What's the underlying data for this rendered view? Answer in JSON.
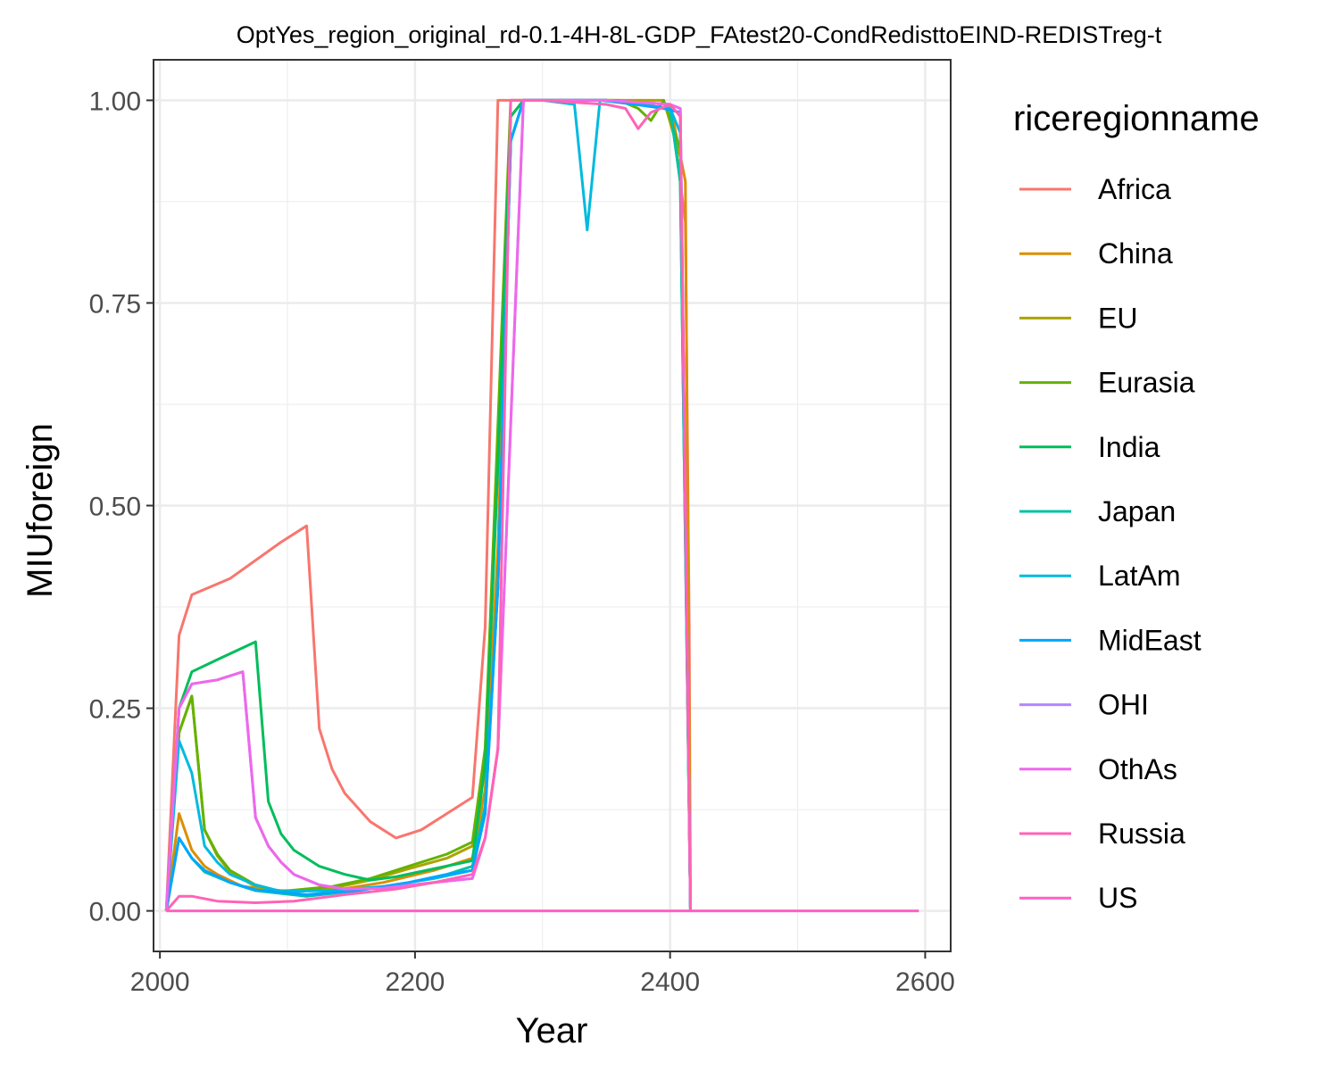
{
  "chart_data": {
    "type": "line",
    "title": "OptYes_region_original_rd-0.1-4H-8L-GDP_FAtest20-CondRedisttoEIND-REDISTreg-t",
    "xlabel": "Year",
    "ylabel": "MIUforeign",
    "xlim": [
      1995,
      2620
    ],
    "ylim": [
      -0.05,
      1.05
    ],
    "x_ticks": [
      2000,
      2200,
      2400,
      2600
    ],
    "x_tick_labels": [
      "2000",
      "2200",
      "2400",
      "2600"
    ],
    "x_minor_ticks": [
      2100,
      2300,
      2500
    ],
    "y_ticks": [
      0.0,
      0.25,
      0.5,
      0.75,
      1.0
    ],
    "y_tick_labels": [
      "0.00",
      "0.25",
      "0.50",
      "0.75",
      "1.00"
    ],
    "y_minor_ticks": [
      0.125,
      0.375,
      0.625,
      0.875
    ],
    "grid": true,
    "legend": {
      "title": "riceregionname",
      "placement": "right"
    },
    "series": [
      {
        "name": "Africa",
        "color": "#F8766D",
        "points": [
          [
            2005,
            0
          ],
          [
            2015,
            0.34
          ],
          [
            2025,
            0.39
          ],
          [
            2055,
            0.41
          ],
          [
            2095,
            0.455
          ],
          [
            2115,
            0.475
          ],
          [
            2125,
            0.225
          ],
          [
            2135,
            0.175
          ],
          [
            2145,
            0.145
          ],
          [
            2165,
            0.11
          ],
          [
            2185,
            0.09
          ],
          [
            2205,
            0.1
          ],
          [
            2245,
            0.14
          ],
          [
            2255,
            0.35
          ],
          [
            2265,
            1.0
          ],
          [
            2275,
            1.0
          ],
          [
            2300,
            1.0
          ],
          [
            2350,
            1.0
          ],
          [
            2400,
            0.995
          ],
          [
            2412,
            0.85
          ],
          [
            2415,
            0.35
          ],
          [
            2416,
            0
          ]
        ]
      },
      {
        "name": "China",
        "color": "#DB8E00",
        "points": [
          [
            2005,
            0
          ],
          [
            2015,
            0.12
          ],
          [
            2025,
            0.075
          ],
          [
            2035,
            0.055
          ],
          [
            2045,
            0.045
          ],
          [
            2065,
            0.03
          ],
          [
            2095,
            0.025
          ],
          [
            2135,
            0.025
          ],
          [
            2175,
            0.035
          ],
          [
            2215,
            0.05
          ],
          [
            2245,
            0.065
          ],
          [
            2255,
            0.15
          ],
          [
            2265,
            0.45
          ],
          [
            2275,
            0.95
          ],
          [
            2285,
            1.0
          ],
          [
            2300,
            1.0
          ],
          [
            2350,
            1.0
          ],
          [
            2400,
            0.995
          ],
          [
            2412,
            0.9
          ],
          [
            2416,
            0
          ]
        ]
      },
      {
        "name": "EU",
        "color": "#AEA200",
        "points": [
          [
            2005,
            0
          ],
          [
            2015,
            0.22
          ],
          [
            2025,
            0.265
          ],
          [
            2035,
            0.1
          ],
          [
            2045,
            0.068
          ],
          [
            2055,
            0.048
          ],
          [
            2075,
            0.03
          ],
          [
            2095,
            0.022
          ],
          [
            2135,
            0.028
          ],
          [
            2165,
            0.038
          ],
          [
            2195,
            0.052
          ],
          [
            2225,
            0.065
          ],
          [
            2245,
            0.08
          ],
          [
            2255,
            0.2
          ],
          [
            2265,
            0.55
          ],
          [
            2275,
            0.98
          ],
          [
            2285,
            1.0
          ],
          [
            2300,
            1.0
          ],
          [
            2350,
            1.0
          ],
          [
            2395,
            1.0
          ],
          [
            2408,
            0.93
          ],
          [
            2416,
            0
          ]
        ]
      },
      {
        "name": "Eurasia",
        "color": "#64B200",
        "points": [
          [
            2005,
            0
          ],
          [
            2015,
            0.22
          ],
          [
            2025,
            0.265
          ],
          [
            2035,
            0.1
          ],
          [
            2045,
            0.07
          ],
          [
            2055,
            0.05
          ],
          [
            2075,
            0.032
          ],
          [
            2095,
            0.024
          ],
          [
            2135,
            0.03
          ],
          [
            2165,
            0.04
          ],
          [
            2195,
            0.055
          ],
          [
            2225,
            0.07
          ],
          [
            2245,
            0.085
          ],
          [
            2255,
            0.2
          ],
          [
            2265,
            0.6
          ],
          [
            2275,
            1.0
          ],
          [
            2300,
            1.0
          ],
          [
            2360,
            1.0
          ],
          [
            2375,
            0.99
          ],
          [
            2385,
            0.975
          ],
          [
            2395,
            1.0
          ],
          [
            2408,
            0.94
          ],
          [
            2416,
            0
          ]
        ]
      },
      {
        "name": "India",
        "color": "#00BD5C",
        "points": [
          [
            2005,
            0
          ],
          [
            2015,
            0.25
          ],
          [
            2025,
            0.295
          ],
          [
            2045,
            0.31
          ],
          [
            2075,
            0.332
          ],
          [
            2085,
            0.135
          ],
          [
            2095,
            0.095
          ],
          [
            2105,
            0.075
          ],
          [
            2125,
            0.055
          ],
          [
            2145,
            0.045
          ],
          [
            2165,
            0.038
          ],
          [
            2185,
            0.042
          ],
          [
            2215,
            0.052
          ],
          [
            2245,
            0.062
          ],
          [
            2255,
            0.18
          ],
          [
            2265,
            0.55
          ],
          [
            2275,
            0.98
          ],
          [
            2285,
            1.0
          ],
          [
            2300,
            1.0
          ],
          [
            2350,
            1.0
          ],
          [
            2400,
            0.99
          ],
          [
            2408,
            0.9
          ],
          [
            2416,
            0
          ]
        ]
      },
      {
        "name": "Japan",
        "color": "#00C1A7",
        "points": [
          [
            2005,
            0
          ],
          [
            2015,
            0.09
          ],
          [
            2025,
            0.065
          ],
          [
            2035,
            0.048
          ],
          [
            2055,
            0.035
          ],
          [
            2075,
            0.025
          ],
          [
            2115,
            0.018
          ],
          [
            2155,
            0.025
          ],
          [
            2195,
            0.035
          ],
          [
            2225,
            0.045
          ],
          [
            2245,
            0.055
          ],
          [
            2255,
            0.13
          ],
          [
            2265,
            0.4
          ],
          [
            2275,
            0.95
          ],
          [
            2285,
            1.0
          ],
          [
            2300,
            1.0
          ],
          [
            2350,
            1.0
          ],
          [
            2400,
            0.99
          ],
          [
            2408,
            0.9
          ],
          [
            2416,
            0
          ]
        ]
      },
      {
        "name": "LatAm",
        "color": "#00BADE",
        "points": [
          [
            2005,
            0
          ],
          [
            2015,
            0.21
          ],
          [
            2025,
            0.17
          ],
          [
            2035,
            0.08
          ],
          [
            2045,
            0.06
          ],
          [
            2055,
            0.045
          ],
          [
            2075,
            0.032
          ],
          [
            2095,
            0.024
          ],
          [
            2135,
            0.025
          ],
          [
            2175,
            0.03
          ],
          [
            2215,
            0.04
          ],
          [
            2245,
            0.05
          ],
          [
            2255,
            0.12
          ],
          [
            2265,
            0.4
          ],
          [
            2275,
            0.95
          ],
          [
            2285,
            1.0
          ],
          [
            2300,
            1.0
          ],
          [
            2325,
            0.995
          ],
          [
            2335,
            0.84
          ],
          [
            2345,
            1.0
          ],
          [
            2400,
            0.99
          ],
          [
            2408,
            0.96
          ],
          [
            2416,
            0
          ]
        ]
      },
      {
        "name": "MidEast",
        "color": "#00A6FF",
        "points": [
          [
            2005,
            0
          ],
          [
            2015,
            0.09
          ],
          [
            2025,
            0.065
          ],
          [
            2035,
            0.05
          ],
          [
            2055,
            0.035
          ],
          [
            2075,
            0.026
          ],
          [
            2115,
            0.02
          ],
          [
            2155,
            0.025
          ],
          [
            2195,
            0.035
          ],
          [
            2225,
            0.045
          ],
          [
            2245,
            0.05
          ],
          [
            2255,
            0.12
          ],
          [
            2265,
            0.4
          ],
          [
            2275,
            0.95
          ],
          [
            2285,
            1.0
          ],
          [
            2300,
            1.0
          ],
          [
            2350,
            1.0
          ],
          [
            2395,
            0.99
          ],
          [
            2408,
            0.985
          ],
          [
            2416,
            0
          ]
        ]
      },
      {
        "name": "OHI",
        "color": "#B385FF",
        "points": [
          [
            2005,
            0
          ],
          [
            2015,
            0.25
          ],
          [
            2025,
            0.28
          ],
          [
            2045,
            0.285
          ],
          [
            2065,
            0.295
          ],
          [
            2075,
            0.115
          ],
          [
            2085,
            0.08
          ],
          [
            2095,
            0.06
          ],
          [
            2105,
            0.045
          ],
          [
            2125,
            0.032
          ],
          [
            2145,
            0.027
          ],
          [
            2175,
            0.028
          ],
          [
            2215,
            0.035
          ],
          [
            2245,
            0.04
          ],
          [
            2255,
            0.09
          ],
          [
            2265,
            0.2
          ],
          [
            2275,
            0.6
          ],
          [
            2285,
            1.0
          ],
          [
            2300,
            1.0
          ],
          [
            2350,
            1.0
          ],
          [
            2400,
            0.995
          ],
          [
            2408,
            0.99
          ],
          [
            2416,
            0
          ]
        ]
      },
      {
        "name": "OthAs",
        "color": "#EF67EB",
        "points": [
          [
            2005,
            0
          ],
          [
            2015,
            0.25
          ],
          [
            2025,
            0.28
          ],
          [
            2045,
            0.285
          ],
          [
            2065,
            0.295
          ],
          [
            2075,
            0.115
          ],
          [
            2085,
            0.08
          ],
          [
            2095,
            0.06
          ],
          [
            2105,
            0.045
          ],
          [
            2125,
            0.032
          ],
          [
            2145,
            0.027
          ],
          [
            2175,
            0.028
          ],
          [
            2215,
            0.035
          ],
          [
            2245,
            0.04
          ],
          [
            2255,
            0.09
          ],
          [
            2265,
            0.2
          ],
          [
            2275,
            0.6
          ],
          [
            2285,
            1.0
          ],
          [
            2300,
            1.0
          ],
          [
            2350,
            1.0
          ],
          [
            2400,
            0.995
          ],
          [
            2408,
            0.99
          ],
          [
            2416,
            0
          ]
        ]
      },
      {
        "name": "Russia",
        "color": "#FF63B6",
        "points": [
          [
            2005,
            0
          ],
          [
            2015,
            0.018
          ],
          [
            2025,
            0.018
          ],
          [
            2045,
            0.012
          ],
          [
            2075,
            0.01
          ],
          [
            2105,
            0.012
          ],
          [
            2145,
            0.02
          ],
          [
            2185,
            0.027
          ],
          [
            2215,
            0.035
          ],
          [
            2245,
            0.045
          ],
          [
            2255,
            0.09
          ],
          [
            2265,
            0.2
          ],
          [
            2275,
            1.0
          ],
          [
            2300,
            1.0
          ],
          [
            2350,
            0.995
          ],
          [
            2365,
            0.99
          ],
          [
            2375,
            0.965
          ],
          [
            2385,
            0.985
          ],
          [
            2400,
            0.995
          ],
          [
            2408,
            0.98
          ],
          [
            2416,
            0
          ]
        ]
      },
      {
        "name": "US",
        "color": "#FF61C3",
        "points": [
          [
            2005,
            0
          ],
          [
            2595,
            0
          ]
        ]
      }
    ]
  }
}
